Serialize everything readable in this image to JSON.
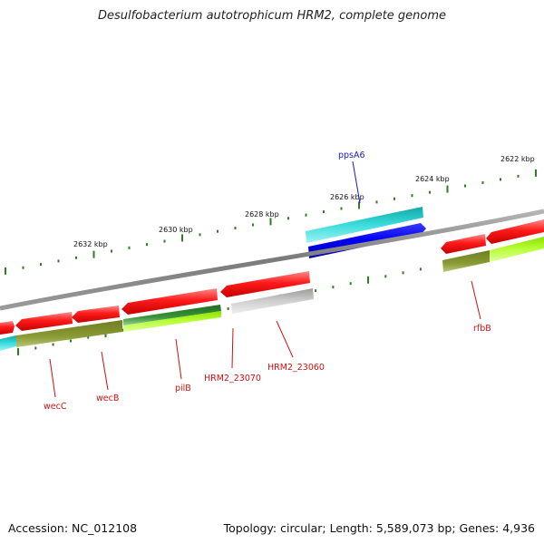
{
  "title": "Desulfobacterium autotrophicum HRM2, complete genome",
  "footer": {
    "accession": "Accession: NC_012108",
    "topology": "Topology: circular; Length: 5,589,073 bp; Genes: 4,936"
  },
  "colors": {
    "backbone": "#8a8a8a",
    "ticks": "#2e7d1e",
    "label_red": "#cc1111",
    "label_blue": "#1a1acc"
  },
  "scale_labels": [
    "2632 kbp",
    "2630 kbp",
    "2628 kbp",
    "2626 kbp",
    "2624 kbp",
    "2622 kbp"
  ],
  "gene_labels": [
    "wecC",
    "wecB",
    "pilB",
    "HRM2_23070",
    "HRM2_23060",
    "rfbB",
    "ppsA6"
  ]
}
